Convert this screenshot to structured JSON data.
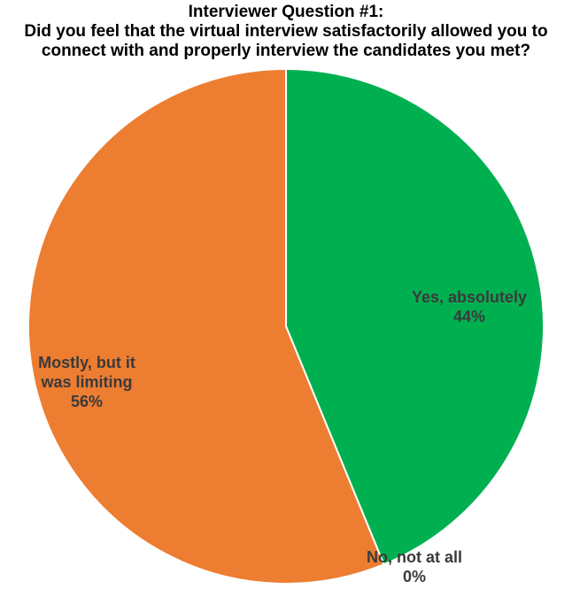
{
  "chart_data": {
    "type": "pie",
    "title_lines": [
      "Interviewer Question #1:",
      "Did you feel that the virtual interview satisfactorily allowed you to",
      "connect with and properly interview the candidates you met?"
    ],
    "slices": [
      {
        "label_lines": [
          "Yes, absolutely"
        ],
        "percent_text": "44%",
        "value": 43.8,
        "color": "#00b050"
      },
      {
        "label_lines": [
          "No, not at all"
        ],
        "percent_text": "0%",
        "value": 0.0,
        "color": "#4472c4"
      },
      {
        "label_lines": [
          "Mostly, but it",
          "was limiting"
        ],
        "percent_text": "56%",
        "value": 56.2,
        "color": "#ed7d31"
      }
    ],
    "start_angle_deg": 0,
    "direction": "clockwise",
    "legend": "none"
  }
}
